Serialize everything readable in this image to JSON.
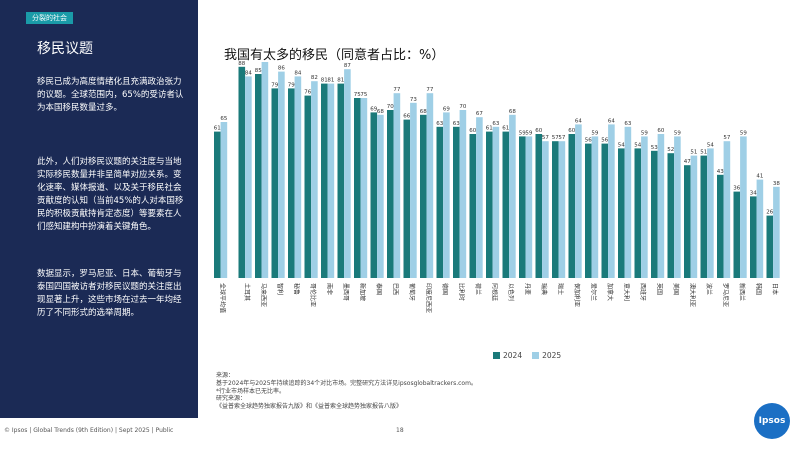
{
  "sidebar": {
    "tag": "分裂的社会",
    "title": "移民议题",
    "paragraphs": [
      "移民已成为高度情绪化且充满政治张力的议题。全球范围内，65%的受访者认为本国移民数量过多。",
      "此外，人们对移民议题的关注度与当地实际移民数量并非呈简单对应关系。变化速率、媒体报道、以及关于移民社会贡献度的认知（当前45%的人对本国移民的积极贡献持肯定态度）等要素在人们感知建构中扮演着关键角色。",
      "数据显示，罗马尼亚、日本、葡萄牙与泰国四国被访者对移民议题的关注度出现显著上升，这些市场在过去一年均经历了不同形式的选举周期。"
    ]
  },
  "chart_title": "我国有太多的移民（同意者占比：%）",
  "legend": {
    "s2024": "2024",
    "s2025": "2025"
  },
  "colors": {
    "s2024": "#1a7a7a",
    "s2025": "#9fcfe6",
    "sidebar": "#1b2a55",
    "tag": "#1a9ba8"
  },
  "chart_data": {
    "type": "bar",
    "categories": [
      "全球平均值",
      "土耳其",
      "马来西亚",
      "智利",
      "秘鲁",
      "哥伦比亚",
      "南非",
      "墨西哥",
      "新加坡",
      "泰国",
      "巴西",
      "葡萄牙",
      "印度尼西亚",
      "德国",
      "比利时",
      "荷兰",
      "阿根廷",
      "以色列",
      "丹麦",
      "瑞典",
      "瑞士",
      "保加利亚",
      "爱尔兰",
      "加拿大",
      "意大利",
      "西班牙",
      "英国",
      "美国",
      "澳大利亚",
      "波兰",
      "罗马尼亚",
      "新西兰",
      "韩国",
      "日本"
    ],
    "series": [
      {
        "name": "2024",
        "values": [
          61,
          88,
          85,
          79,
          79,
          76,
          81,
          81,
          75,
          69,
          70,
          66,
          68,
          63,
          63,
          60,
          61,
          61,
          59,
          60,
          57,
          60,
          56,
          56,
          54,
          54,
          53,
          52,
          47,
          51,
          43,
          36,
          34,
          26
        ]
      },
      {
        "name": "2025",
        "values": [
          65,
          84,
          90,
          86,
          84,
          82,
          81,
          87,
          75,
          68,
          77,
          73,
          77,
          69,
          70,
          67,
          63,
          68,
          59,
          57,
          57,
          64,
          59,
          64,
          63,
          59,
          60,
          59,
          51,
          54,
          57,
          59,
          41,
          38
        ]
      }
    ],
    "ylim": [
      0,
      100
    ]
  },
  "notes": [
    "来源：",
    "基于2024年与2025年持续追踪的34个对比市场。完整研究方法详见ipsosglobaltrackers.com。",
    "*行业市场样本已无比率。",
    "研究来源：",
    "《益普索全球趋势独家报告九版》和《益普索全球趋势独家报告八版》"
  ],
  "footer": "© Ipsos | Global Trends (9th Edition) | Sept 2025 | Public",
  "page_number": "18",
  "logo_text": "Ipsos"
}
